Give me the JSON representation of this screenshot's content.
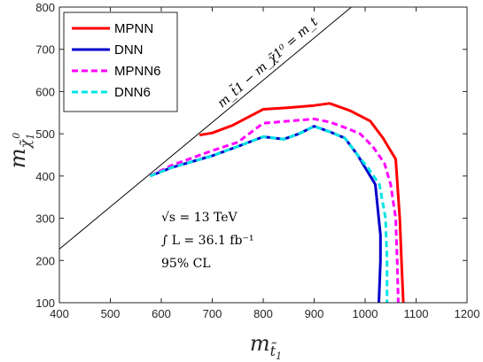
{
  "chart_data": {
    "type": "line",
    "xlabel": "m",
    "xlabel_sub": "t̃",
    "xlabel_subsub": "1",
    "ylabel": "m",
    "ylabel_sub": "χ̃",
    "ylabel_subsub": "1",
    "ylabel_sup": "0",
    "xlim": [
      400,
      1200
    ],
    "ylim": [
      100,
      800
    ],
    "xticks": [
      400,
      500,
      600,
      700,
      800,
      900,
      1000,
      1100,
      1200
    ],
    "yticks": [
      100,
      200,
      300,
      400,
      500,
      600,
      700,
      800
    ],
    "grid": false,
    "legend_position": "top-left",
    "diagonal": {
      "label": "m_t̃1 − m_χ̃1⁰ = m_t",
      "points": [
        [
          400,
          227
        ],
        [
          973,
          800
        ]
      ],
      "color": "#000000"
    },
    "annotations": [
      "√s = 13 TeV",
      "∫ L = 36.1 fb⁻¹",
      "95% CL"
    ],
    "series": [
      {
        "name": "MPNN",
        "color": "#ff0000",
        "dash": "solid",
        "points": [
          [
            675,
            497
          ],
          [
            700,
            502
          ],
          [
            740,
            520
          ],
          [
            800,
            558
          ],
          [
            850,
            562
          ],
          [
            900,
            567
          ],
          [
            930,
            572
          ],
          [
            970,
            555
          ],
          [
            1010,
            530
          ],
          [
            1035,
            490
          ],
          [
            1060,
            440
          ],
          [
            1068,
            300
          ],
          [
            1072,
            180
          ],
          [
            1075,
            100
          ]
        ]
      },
      {
        "name": "DNN",
        "color": "#0000cc",
        "dash": "solid",
        "points": [
          [
            578,
            400
          ],
          [
            620,
            420
          ],
          [
            700,
            448
          ],
          [
            750,
            470
          ],
          [
            800,
            493
          ],
          [
            820,
            490
          ],
          [
            840,
            487
          ],
          [
            870,
            500
          ],
          [
            900,
            518
          ],
          [
            930,
            505
          ],
          [
            960,
            490
          ],
          [
            985,
            450
          ],
          [
            1005,
            410
          ],
          [
            1020,
            380
          ],
          [
            1025,
            320
          ],
          [
            1030,
            260
          ],
          [
            1030,
            200
          ],
          [
            1027,
            100
          ]
        ]
      },
      {
        "name": "MPNN6",
        "color": "#ff00ff",
        "dash": "dashed",
        "points": [
          [
            578,
            400
          ],
          [
            620,
            425
          ],
          [
            700,
            460
          ],
          [
            750,
            480
          ],
          [
            800,
            525
          ],
          [
            850,
            530
          ],
          [
            900,
            535
          ],
          [
            930,
            528
          ],
          [
            960,
            515
          ],
          [
            990,
            500
          ],
          [
            1015,
            470
          ],
          [
            1038,
            430
          ],
          [
            1050,
            380
          ],
          [
            1060,
            300
          ],
          [
            1063,
            200
          ],
          [
            1065,
            100
          ]
        ]
      },
      {
        "name": "DNN6",
        "color": "#00e5e5",
        "dash": "dashed",
        "points": [
          [
            578,
            400
          ],
          [
            620,
            420
          ],
          [
            700,
            448
          ],
          [
            750,
            470
          ],
          [
            800,
            493
          ],
          [
            820,
            490
          ],
          [
            840,
            487
          ],
          [
            870,
            500
          ],
          [
            900,
            518
          ],
          [
            930,
            505
          ],
          [
            960,
            490
          ],
          [
            985,
            450
          ],
          [
            1005,
            420
          ],
          [
            1028,
            380
          ],
          [
            1040,
            300
          ],
          [
            1043,
            200
          ],
          [
            1043,
            100
          ]
        ]
      }
    ]
  }
}
